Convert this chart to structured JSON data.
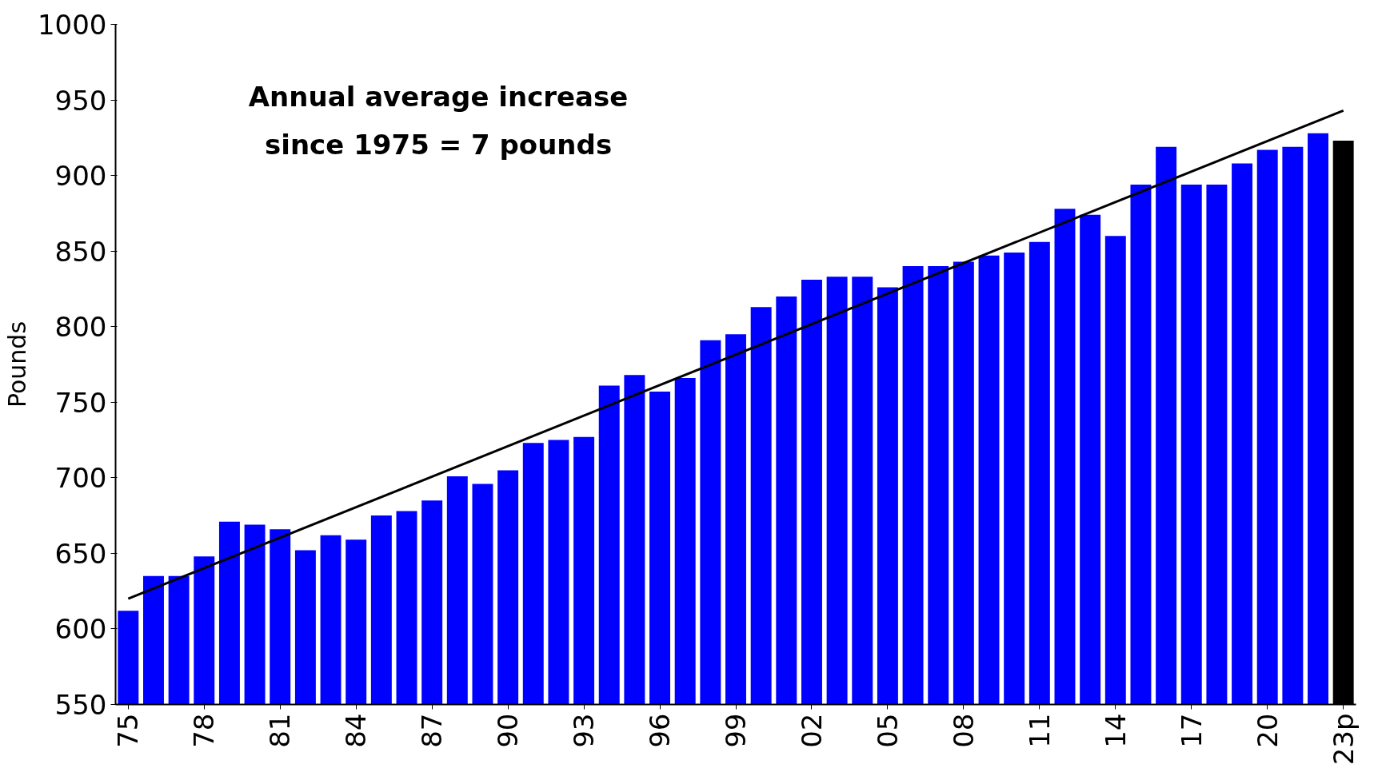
{
  "chart_data": {
    "type": "bar",
    "ylabel": "Pounds",
    "categories": [
      "75",
      null,
      null,
      "78",
      null,
      null,
      "81",
      null,
      null,
      "84",
      null,
      null,
      "87",
      null,
      null,
      "90",
      null,
      null,
      "93",
      null,
      null,
      "96",
      null,
      null,
      "99",
      null,
      null,
      "02",
      null,
      null,
      "05",
      null,
      null,
      "08",
      null,
      null,
      "11",
      null,
      null,
      "14",
      null,
      null,
      "17",
      null,
      null,
      "20",
      null,
      null,
      "23p"
    ],
    "series": [
      {
        "colors": [
          "#0000ff",
          "#0000ff",
          "#0000ff",
          "#0000ff",
          "#0000ff",
          "#0000ff",
          "#0000ff",
          "#0000ff",
          "#0000ff",
          "#0000ff",
          "#0000ff",
          "#0000ff",
          "#0000ff",
          "#0000ff",
          "#0000ff",
          "#0000ff",
          "#0000ff",
          "#0000ff",
          "#0000ff",
          "#0000ff",
          "#0000ff",
          "#0000ff",
          "#0000ff",
          "#0000ff",
          "#0000ff",
          "#0000ff",
          "#0000ff",
          "#0000ff",
          "#0000ff",
          "#0000ff",
          "#0000ff",
          "#0000ff",
          "#0000ff",
          "#0000ff",
          "#0000ff",
          "#0000ff",
          "#0000ff",
          "#0000ff",
          "#0000ff",
          "#0000ff",
          "#0000ff",
          "#0000ff",
          "#0000ff",
          "#0000ff",
          "#0000ff",
          "#0000ff",
          "#0000ff",
          "#0000ff",
          "#000000"
        ],
        "values": [
          612,
          635,
          635,
          648,
          671,
          669,
          666,
          652,
          662,
          659,
          675,
          678,
          685,
          701,
          696,
          705,
          723,
          725,
          727,
          761,
          768,
          757,
          766,
          791,
          795,
          813,
          820,
          831,
          833,
          833,
          826,
          840,
          840,
          843,
          847,
          849,
          856,
          878,
          874,
          860,
          894,
          919,
          894,
          894,
          908,
          917,
          919,
          928,
          923
        ]
      },
      {
        "type": "line",
        "color": "#000000",
        "x": [
          "75",
          "23p"
        ],
        "values": [
          620,
          943
        ]
      }
    ],
    "ylim": [
      550,
      1000
    ],
    "yticks": [
      550,
      600,
      650,
      700,
      750,
      800,
      850,
      900,
      950,
      1000
    ],
    "grid": false,
    "annotations": [
      "Annual average increase\nsince 1975 = 7 pounds"
    ]
  }
}
